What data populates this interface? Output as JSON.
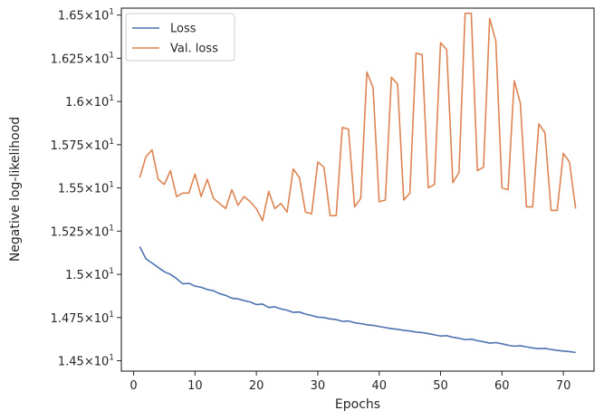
{
  "chart_data": {
    "type": "line",
    "xlabel": "Epochs",
    "ylabel": "Negative log-likelihood",
    "xlim": [
      -2,
      75
    ],
    "ylim": [
      14.44,
      16.54
    ],
    "x_ticks": [
      0,
      10,
      20,
      30,
      40,
      50,
      60,
      70
    ],
    "x_tick_labels": [
      "0",
      "10",
      "20",
      "30",
      "40",
      "50",
      "60",
      "70"
    ],
    "y_ticks": [
      14.5,
      14.75,
      15.0,
      15.25,
      15.5,
      15.75,
      16.0,
      16.25,
      16.5
    ],
    "y_tick_labels": [
      {
        "mant": "1.45",
        "exp": "1"
      },
      {
        "mant": "1.475",
        "exp": "1"
      },
      {
        "mant": "1.5",
        "exp": "1"
      },
      {
        "mant": "1.525",
        "exp": "1"
      },
      {
        "mant": "1.55",
        "exp": "1"
      },
      {
        "mant": "1.575",
        "exp": "1"
      },
      {
        "mant": "1.6",
        "exp": "1"
      },
      {
        "mant": "1.625",
        "exp": "1"
      },
      {
        "mant": "1.65",
        "exp": "1"
      }
    ],
    "grid": false,
    "legend_position": "top-left",
    "x": [
      1,
      2,
      3,
      4,
      5,
      6,
      7,
      8,
      9,
      10,
      11,
      12,
      13,
      14,
      15,
      16,
      17,
      18,
      19,
      20,
      21,
      22,
      23,
      24,
      25,
      26,
      27,
      28,
      29,
      30,
      31,
      32,
      33,
      34,
      35,
      36,
      37,
      38,
      39,
      40,
      41,
      42,
      43,
      44,
      45,
      46,
      47,
      48,
      49,
      50,
      51,
      52,
      53,
      54,
      55,
      56,
      57,
      58,
      59,
      60,
      61,
      62,
      63,
      64,
      65,
      66,
      67,
      68,
      69,
      70,
      71,
      72
    ],
    "series": [
      {
        "name": "Loss",
        "color": "#4c72b0",
        "values": [
          15.16,
          15.09,
          15.065,
          15.04,
          15.015,
          15.0,
          14.975,
          14.945,
          14.948,
          14.932,
          14.925,
          14.912,
          14.905,
          14.888,
          14.878,
          14.862,
          14.858,
          14.848,
          14.84,
          14.825,
          14.828,
          14.808,
          14.812,
          14.8,
          14.792,
          14.78,
          14.782,
          14.77,
          14.762,
          14.752,
          14.75,
          14.742,
          14.738,
          14.728,
          14.73,
          14.72,
          14.715,
          14.708,
          14.705,
          14.698,
          14.692,
          14.686,
          14.682,
          14.676,
          14.672,
          14.666,
          14.663,
          14.657,
          14.65,
          14.643,
          14.645,
          14.636,
          14.63,
          14.622,
          14.625,
          14.616,
          14.61,
          14.602,
          14.605,
          14.598,
          14.59,
          14.584,
          14.587,
          14.58,
          14.574,
          14.57,
          14.572,
          14.565,
          14.56,
          14.556,
          14.553,
          14.548
        ]
      },
      {
        "name": "Val. loss",
        "color": "#dd8452",
        "values": [
          15.56,
          15.68,
          15.72,
          15.55,
          15.52,
          15.6,
          15.45,
          15.47,
          15.47,
          15.58,
          15.45,
          15.55,
          15.44,
          15.41,
          15.38,
          15.49,
          15.4,
          15.45,
          15.42,
          15.38,
          15.31,
          15.48,
          15.38,
          15.41,
          15.36,
          15.61,
          15.56,
          15.36,
          15.35,
          15.65,
          15.62,
          15.34,
          15.34,
          15.85,
          15.84,
          15.39,
          15.44,
          16.17,
          16.08,
          15.42,
          15.43,
          16.14,
          16.1,
          15.43,
          15.47,
          16.28,
          16.27,
          15.5,
          15.52,
          16.34,
          16.3,
          15.53,
          15.59,
          16.51,
          16.51,
          15.6,
          15.62,
          16.48,
          16.35,
          15.5,
          15.49,
          16.12,
          15.99,
          15.39,
          15.39,
          15.87,
          15.82,
          15.37,
          15.37,
          15.7,
          15.65,
          15.38
        ]
      }
    ]
  }
}
